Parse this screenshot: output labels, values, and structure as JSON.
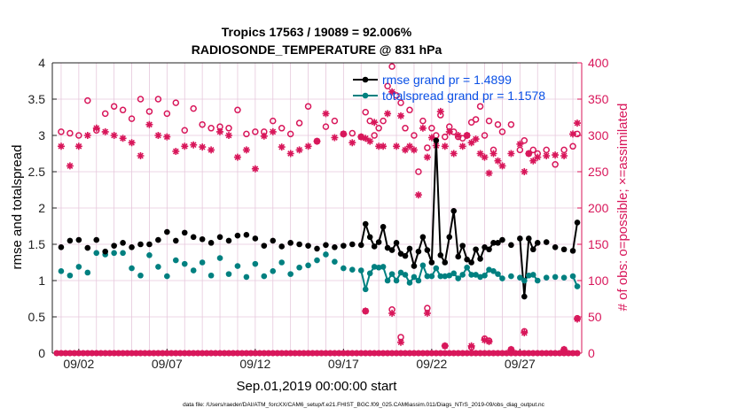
{
  "chart_data": {
    "type": "line",
    "title_line1": "Tropics 17563 / 19089 = 92.006%",
    "title_line2": "RADIOSONDE_TEMPERATURE @ 831 hPa",
    "xlabel": "Sep.01,2019 00:00:00 start",
    "ylabel_left": "rmse and totalspread",
    "ylabel_right": "# of obs: o=possible; ×=assimilated",
    "footer": "data file: /Users/raeder/DAI/ATM_forcXX/CAM6_setup/f.e21.FHIST_BGC.f09_025.CAM6assim.011/Diags_NTrS_2019-09/obs_diag_output.nc",
    "xlim": [
      0.5,
      30.5
    ],
    "ylim_left": [
      0,
      4
    ],
    "ylim_right": [
      0,
      400
    ],
    "x_tick_values": [
      2,
      7,
      12,
      17,
      22,
      27
    ],
    "x_tick_labels": [
      "09/02",
      "09/07",
      "09/12",
      "09/17",
      "09/22",
      "09/27"
    ],
    "y_left_ticks": [
      0,
      0.5,
      1,
      1.5,
      2,
      2.5,
      3,
      3.5,
      4
    ],
    "y_left_tick_labels": [
      "0",
      "0.5",
      "1",
      "1.5",
      "2",
      "2.5",
      "3",
      "3.5",
      "4"
    ],
    "y_right_ticks": [
      0,
      50,
      100,
      150,
      200,
      250,
      300,
      350,
      400
    ],
    "y_right_tick_labels": [
      "0",
      "50",
      "100",
      "150",
      "200",
      "250",
      "300",
      "350",
      "400"
    ],
    "legend": {
      "rmse_label": "rmse grand pr = 1.4899",
      "spread_label": "totalspread grand pr = 1.1578",
      "position": "top-right"
    },
    "colors": {
      "rmse": "#000000",
      "spread": "#008080",
      "obs": "#d8165a",
      "legend_text": "#0a50e6",
      "grid": "#e6c8dc"
    },
    "x": [
      1.0,
      1.5,
      2.0,
      2.5,
      3.0,
      3.5,
      4.0,
      4.5,
      5.0,
      5.5,
      6.0,
      6.5,
      7.0,
      7.5,
      8.0,
      8.5,
      9.0,
      9.5,
      10.0,
      10.5,
      11.0,
      11.5,
      12.0,
      12.5,
      13.0,
      13.5,
      14.0,
      14.5,
      15.0,
      15.5,
      16.0,
      16.5,
      17.0,
      17.5,
      18.0,
      18.25,
      18.5,
      18.75,
      19.0,
      19.25,
      19.5,
      19.75,
      20.0,
      20.25,
      20.5,
      20.75,
      21.0,
      21.25,
      21.5,
      21.75,
      22.0,
      22.25,
      22.5,
      22.75,
      23.0,
      23.25,
      23.5,
      23.75,
      24.0,
      24.25,
      24.5,
      24.75,
      25.0,
      25.25,
      25.5,
      25.75,
      26.0,
      26.5,
      27.0,
      27.25,
      27.5,
      27.75,
      28.0,
      28.5,
      29.0,
      29.5,
      30.0,
      30.25
    ],
    "series": [
      {
        "name": "rmse",
        "values": [
          1.46,
          1.55,
          1.56,
          1.45,
          1.56,
          1.4,
          1.48,
          1.52,
          1.46,
          1.5,
          1.5,
          1.56,
          1.67,
          1.55,
          1.66,
          1.6,
          1.57,
          1.52,
          1.6,
          1.55,
          1.62,
          1.63,
          1.58,
          1.48,
          1.55,
          1.47,
          1.52,
          1.5,
          1.48,
          1.44,
          1.49,
          1.46,
          1.48,
          1.5,
          1.49,
          1.78,
          1.6,
          1.47,
          1.53,
          1.74,
          1.45,
          1.42,
          1.52,
          1.37,
          1.34,
          1.44,
          1.2,
          1.4,
          1.6,
          1.42,
          1.25,
          2.93,
          1.35,
          1.25,
          1.6,
          1.96,
          1.33,
          1.48,
          1.29,
          1.25,
          1.43,
          1.3,
          1.46,
          1.43,
          1.52,
          1.52,
          1.56,
          1.49,
          1.58,
          0.78,
          1.58,
          1.43,
          1.52,
          1.53,
          1.46,
          1.43,
          1.41,
          1.8
        ]
      },
      {
        "name": "totalspread",
        "values": [
          1.13,
          1.07,
          1.19,
          1.11,
          1.38,
          1.36,
          1.38,
          1.38,
          1.17,
          1.07,
          1.35,
          1.19,
          1.06,
          1.28,
          1.23,
          1.14,
          1.25,
          1.07,
          1.31,
          1.09,
          1.2,
          1.05,
          1.23,
          1.06,
          1.13,
          1.25,
          1.09,
          1.18,
          1.21,
          1.28,
          1.36,
          1.26,
          1.17,
          1.15,
          1.14,
          0.88,
          1.1,
          1.19,
          1.18,
          1.19,
          1.0,
          1.09,
          1.0,
          1.11,
          1.08,
          0.97,
          1.05,
          1.0,
          1.21,
          1.06,
          1.06,
          1.17,
          1.06,
          1.06,
          1.07,
          1.1,
          1.03,
          1.08,
          1.18,
          1.08,
          1.08,
          1.05,
          1.07,
          1.15,
          1.13,
          1.09,
          1.03,
          1.06,
          1.04,
          1.0,
          1.07,
          1.08,
          1.0,
          1.04,
          1.05,
          1.04,
          1.06,
          0.92
        ]
      },
      {
        "name": "obs_possible",
        "values": [
          305,
          303,
          300,
          348,
          307,
          330,
          340,
          335,
          323,
          350,
          333,
          350,
          330,
          345,
          307,
          337,
          315,
          310,
          312,
          310,
          335,
          302,
          305,
          305,
          320,
          310,
          302,
          317,
          340,
          292,
          312,
          320,
          302,
          303,
          298,
          332,
          320,
          300,
          310,
          320,
          368,
          395,
          355,
          345,
          310,
          335,
          300,
          250,
          320,
          283,
          310,
          300,
          328,
          298,
          312,
          305,
          298,
          296,
          300,
          318,
          322,
          340,
          300,
          320,
          280,
          315,
          305,
          315,
          280,
          293,
          275,
          280,
          275,
          280,
          260,
          280,
          285,
          302
        ]
      },
      {
        "name": "obs_assimilated",
        "values": [
          285,
          258,
          285,
          300,
          310,
          305,
          300,
          296,
          290,
          272,
          315,
          300,
          298,
          278,
          285,
          287,
          284,
          280,
          305,
          300,
          270,
          280,
          254,
          299,
          305,
          284,
          275,
          280,
          285,
          292,
          330,
          297,
          302,
          290,
          298,
          296,
          292,
          318,
          285,
          285,
          330,
          360,
          285,
          327,
          280,
          285,
          280,
          218,
          310,
          270,
          297,
          286,
          333,
          285,
          305,
          275,
          300,
          285,
          300,
          290,
          295,
          275,
          270,
          248,
          275,
          265,
          258,
          275,
          288,
          250,
          275,
          265,
          270,
          272,
          273,
          272,
          302,
          317
        ]
      }
    ],
    "obs_low_possible": {
      "x": [
        18.25,
        19.75,
        20.25,
        21.75,
        22.75,
        24.25,
        25.0,
        25.25,
        26.5,
        27.25,
        29.5,
        30.25
      ],
      "values": [
        58,
        60,
        22,
        62,
        10,
        8,
        20,
        17,
        5,
        30,
        5,
        48
      ]
    },
    "obs_low_assimilated": {
      "x": [
        18.25,
        19.75,
        20.25,
        21.75,
        22.75,
        24.25,
        25.0,
        25.25,
        26.5,
        27.25,
        29.5,
        30.25
      ],
      "values": [
        58,
        55,
        15,
        55,
        10,
        10,
        18,
        16,
        5,
        28,
        5,
        47
      ]
    }
  }
}
